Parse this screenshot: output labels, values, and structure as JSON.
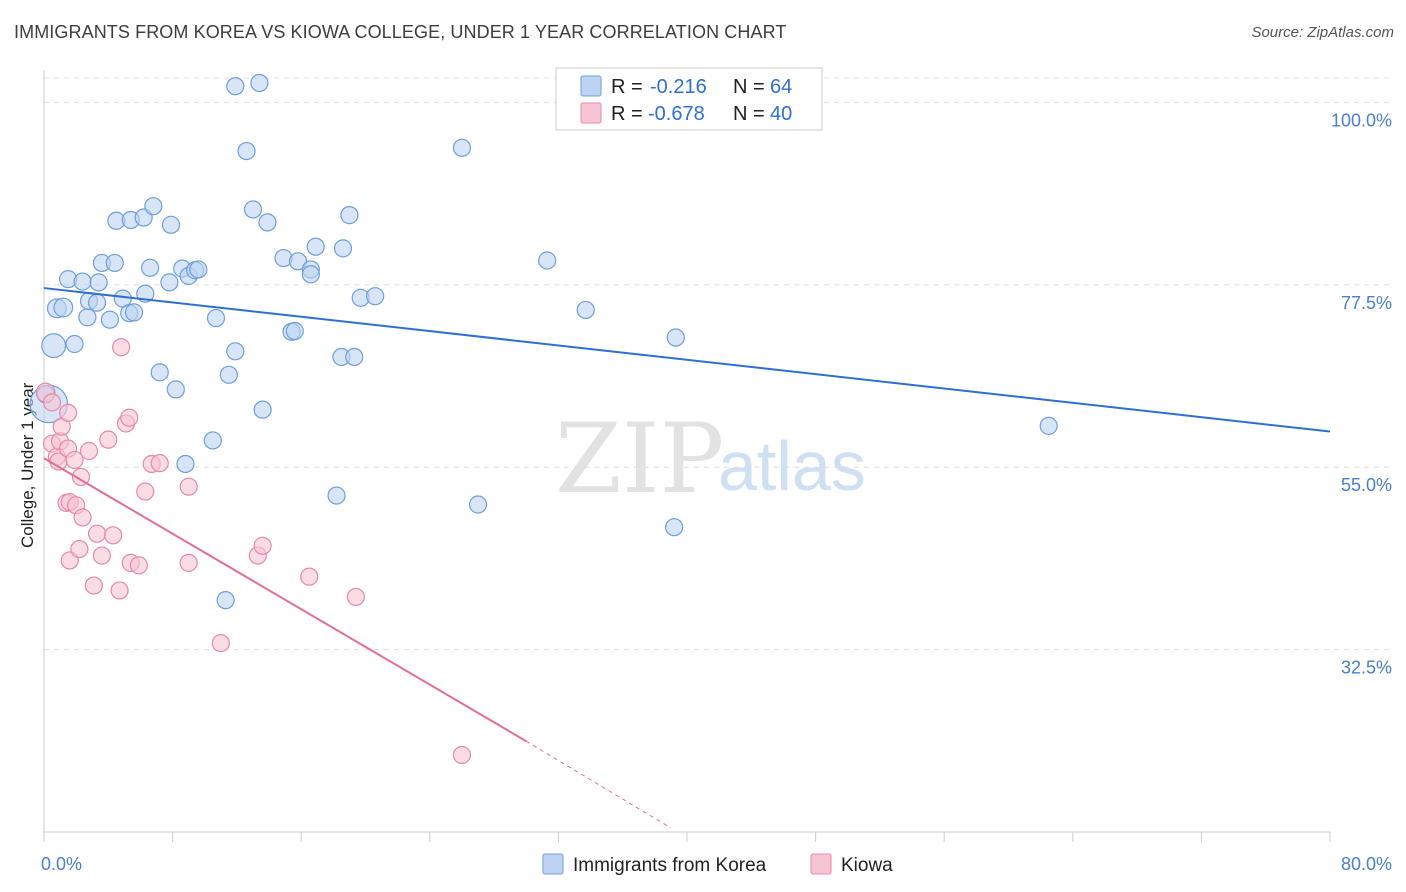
{
  "header": {
    "title": "IMMIGRANTS FROM KOREA VS KIOWA COLLEGE, UNDER 1 YEAR CORRELATION CHART",
    "source": "Source: ZipAtlas.com"
  },
  "watermark": {
    "zip": "ZIP",
    "atlas": "atlas"
  },
  "colors": {
    "blue_fill": "#bcd4f2",
    "blue_stroke": "#6e9fd8",
    "blue_line": "#2f6fd0",
    "pink_fill": "#f7c4d3",
    "pink_stroke": "#e48aa8",
    "pink_line": "#e06f97",
    "grid": "#dddddd",
    "axis_label": "#4a7fcb"
  },
  "legend": {
    "rows": [
      {
        "r_label": "R = ",
        "r_value": "-0.216",
        "n_label": "N = ",
        "n_value": "64"
      },
      {
        "r_label": "R = ",
        "r_value": "-0.678",
        "n_label": "N = ",
        "n_value": "40"
      }
    ]
  },
  "chart_data": {
    "type": "scatter",
    "title": "IMMIGRANTS FROM KOREA VS KIOWA COLLEGE, UNDER 1 YEAR CORRELATION CHART",
    "xlabel": "",
    "ylabel": "College, Under 1 year",
    "xlim": [
      0,
      80
    ],
    "ylim": [
      10,
      104
    ],
    "x_tick_labels": [
      "0.0%",
      "80.0%"
    ],
    "y_ticks": [
      32.5,
      55.0,
      77.5,
      100.0
    ],
    "y_tick_labels": [
      "32.5%",
      "55.0%",
      "77.5%",
      "100.0%"
    ],
    "grid": true,
    "legend_position": "top-center",
    "series": [
      {
        "name": "Immigrants from Korea",
        "color": "#6e9fd8",
        "trend": {
          "x": [
            0,
            80
          ],
          "y": [
            77.1,
            59.4
          ]
        },
        "points": [
          [
            0.3,
            62.8,
            22
          ],
          [
            0.1,
            64.0,
            10
          ],
          [
            0.6,
            70.0,
            14
          ],
          [
            0.8,
            74.6,
            11
          ],
          [
            1.2,
            74.7,
            11
          ],
          [
            1.5,
            78.2,
            10
          ],
          [
            1.9,
            70.2,
            10
          ],
          [
            2.4,
            77.9,
            10
          ],
          [
            2.7,
            73.5,
            10
          ],
          [
            2.8,
            75.5,
            10
          ],
          [
            3.3,
            75.3,
            10
          ],
          [
            3.4,
            77.8,
            10
          ],
          [
            3.6,
            80.2,
            10
          ],
          [
            4.4,
            80.2,
            10
          ],
          [
            4.5,
            85.4,
            10
          ],
          [
            4.1,
            73.2,
            10
          ],
          [
            4.9,
            75.8,
            10
          ],
          [
            5.3,
            74.0,
            10
          ],
          [
            5.4,
            85.5,
            10
          ],
          [
            5.6,
            74.1,
            10
          ],
          [
            6.2,
            85.8,
            10
          ],
          [
            6.3,
            76.4,
            10
          ],
          [
            6.6,
            79.6,
            10
          ],
          [
            6.8,
            87.2,
            10
          ],
          [
            7.2,
            66.7,
            10
          ],
          [
            7.8,
            77.8,
            10
          ],
          [
            7.9,
            84.9,
            10
          ],
          [
            8.2,
            64.6,
            10
          ],
          [
            8.6,
            79.5,
            10
          ],
          [
            9.0,
            78.6,
            10
          ],
          [
            9.4,
            79.3,
            10
          ],
          [
            9.6,
            79.4,
            10
          ],
          [
            8.8,
            55.4,
            10
          ],
          [
            10.5,
            58.3,
            10
          ],
          [
            10.7,
            73.4,
            10
          ],
          [
            11.5,
            66.4,
            10
          ],
          [
            11.9,
            69.3,
            10
          ],
          [
            11.3,
            38.6,
            10
          ],
          [
            11.9,
            102.0,
            10
          ],
          [
            12.6,
            94.0,
            10
          ],
          [
            13.0,
            86.8,
            10
          ],
          [
            13.4,
            102.4,
            10
          ],
          [
            13.6,
            62.1,
            10
          ],
          [
            13.9,
            85.2,
            10
          ],
          [
            14.9,
            80.8,
            10
          ],
          [
            15.4,
            71.7,
            10
          ],
          [
            15.6,
            71.8,
            10
          ],
          [
            15.8,
            80.4,
            10
          ],
          [
            16.6,
            79.4,
            10
          ],
          [
            16.6,
            78.8,
            10
          ],
          [
            16.9,
            82.2,
            10
          ],
          [
            18.2,
            51.5,
            10
          ],
          [
            18.5,
            68.6,
            10
          ],
          [
            18.6,
            82.0,
            10
          ],
          [
            19.0,
            86.1,
            10
          ],
          [
            19.3,
            68.6,
            10
          ],
          [
            19.7,
            75.9,
            10
          ],
          [
            20.6,
            76.1,
            10
          ],
          [
            26.0,
            94.4,
            10
          ],
          [
            27.0,
            50.4,
            10
          ],
          [
            31.3,
            80.5,
            10
          ],
          [
            33.7,
            74.4,
            10
          ],
          [
            39.3,
            71.0,
            10
          ],
          [
            39.2,
            47.6,
            10
          ],
          [
            62.5,
            60.1,
            10
          ]
        ]
      },
      {
        "name": "Kiowa",
        "color": "#e48aa8",
        "trend": {
          "x": [
            0,
            30
          ],
          "y": [
            56.1,
            21.2
          ]
        },
        "trend_dashed": {
          "x": [
            30,
            39.0
          ],
          "y": [
            21.2,
            10.5
          ]
        },
        "points": [
          [
            0.1,
            64.2,
            11
          ],
          [
            0.5,
            63.0,
            10
          ],
          [
            0.5,
            57.9,
            10
          ],
          [
            0.8,
            56.3,
            10
          ],
          [
            0.9,
            55.7,
            10
          ],
          [
            1.0,
            58.2,
            10
          ],
          [
            1.1,
            60.0,
            10
          ],
          [
            1.4,
            50.6,
            10
          ],
          [
            1.5,
            57.3,
            10
          ],
          [
            1.5,
            61.7,
            10
          ],
          [
            1.6,
            50.7,
            10
          ],
          [
            1.6,
            43.5,
            10
          ],
          [
            1.9,
            55.9,
            10
          ],
          [
            2.0,
            50.3,
            10
          ],
          [
            2.2,
            44.9,
            10
          ],
          [
            2.3,
            53.8,
            10
          ],
          [
            2.4,
            48.8,
            10
          ],
          [
            2.8,
            57.0,
            10
          ],
          [
            3.1,
            40.4,
            10
          ],
          [
            3.3,
            46.8,
            10
          ],
          [
            3.6,
            44.1,
            10
          ],
          [
            4.3,
            46.6,
            10
          ],
          [
            4.7,
            39.8,
            10
          ],
          [
            4.8,
            69.8,
            10
          ],
          [
            5.1,
            60.4,
            10
          ],
          [
            5.3,
            61.1,
            10
          ],
          [
            5.4,
            43.2,
            10
          ],
          [
            5.9,
            42.9,
            10
          ],
          [
            6.3,
            52.0,
            10
          ],
          [
            6.7,
            55.4,
            10
          ],
          [
            7.2,
            55.5,
            10
          ],
          [
            9.0,
            52.6,
            10
          ],
          [
            9.0,
            43.2,
            10
          ],
          [
            11.0,
            33.3,
            10
          ],
          [
            13.3,
            44.1,
            10
          ],
          [
            13.6,
            45.3,
            10
          ],
          [
            16.5,
            41.5,
            10
          ],
          [
            19.4,
            39.0,
            10
          ],
          [
            26.0,
            19.5,
            10
          ],
          [
            4.0,
            58.4,
            10
          ]
        ]
      }
    ]
  },
  "bottom_legend": {
    "items": [
      {
        "label": "Immigrants from Korea"
      },
      {
        "label": "Kiowa"
      }
    ]
  }
}
